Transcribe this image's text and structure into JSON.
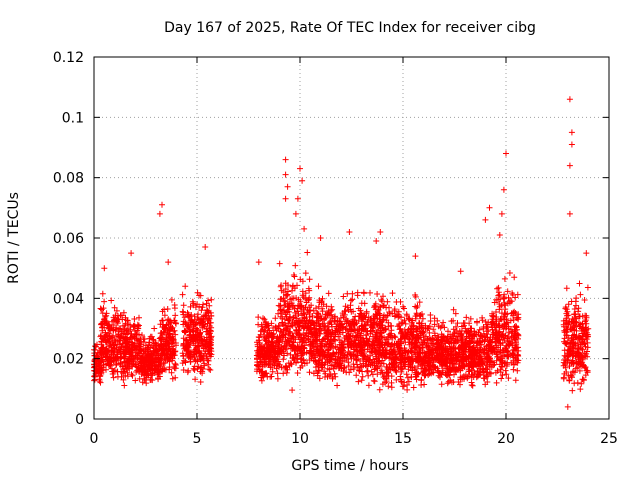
{
  "chart_data": {
    "type": "scatter",
    "title": "Day 167 of 2025, Rate Of TEC Index for receiver cibg",
    "xlabel": "GPS time / hours",
    "ylabel": "ROTI / TECUs",
    "xlim": [
      0,
      25
    ],
    "ylim": [
      0,
      0.12
    ],
    "xticks": [
      0,
      5,
      10,
      15,
      20,
      25
    ],
    "xtick_labels": [
      "0",
      "5",
      "10",
      "15",
      "20",
      "25"
    ],
    "yticks": [
      0,
      0.02,
      0.04,
      0.06,
      0.08,
      0.1,
      0.12
    ],
    "ytick_labels": [
      "0",
      "0.02",
      "0.04",
      "0.06",
      "0.08",
      "0.1",
      "0.12"
    ],
    "grid": true,
    "marker": "+",
    "series_color": "#ff0000",
    "series": [
      {
        "name": "ROTI",
        "segments": [
          {
            "x_range": [
              0.0,
              0.3
            ],
            "y_range": [
              0.01,
              0.028
            ]
          },
          {
            "x_range": [
              0.3,
              1.5
            ],
            "y_range": [
              0.008,
              0.045
            ]
          },
          {
            "x_range": [
              1.5,
              2.2
            ],
            "y_range": [
              0.01,
              0.04
            ]
          },
          {
            "x_range": [
              2.2,
              3.2
            ],
            "y_range": [
              0.01,
              0.032
            ]
          },
          {
            "x_range": [
              3.2,
              4.0
            ],
            "y_range": [
              0.01,
              0.044
            ]
          },
          {
            "x_range": [
              4.3,
              5.7
            ],
            "y_range": [
              0.01,
              0.048
            ]
          },
          {
            "x_range": [
              7.9,
              9.0
            ],
            "y_range": [
              0.01,
              0.04
            ]
          },
          {
            "x_range": [
              9.0,
              10.5
            ],
            "y_range": [
              0.008,
              0.058
            ]
          },
          {
            "x_range": [
              10.5,
              12.0
            ],
            "y_range": [
              0.008,
              0.048
            ]
          },
          {
            "x_range": [
              12.0,
              14.0
            ],
            "y_range": [
              0.008,
              0.05
            ]
          },
          {
            "x_range": [
              14.0,
              16.0
            ],
            "y_range": [
              0.006,
              0.046
            ]
          },
          {
            "x_range": [
              16.0,
              18.0
            ],
            "y_range": [
              0.008,
              0.04
            ]
          },
          {
            "x_range": [
              18.0,
              19.3
            ],
            "y_range": [
              0.008,
              0.04
            ]
          },
          {
            "x_range": [
              19.3,
              20.6
            ],
            "y_range": [
              0.008,
              0.052
            ]
          },
          {
            "x_range": [
              22.8,
              24.0
            ],
            "y_range": [
              0.006,
              0.05
            ]
          }
        ],
        "outliers": [
          [
            0.5,
            0.05
          ],
          [
            1.8,
            0.055
          ],
          [
            3.2,
            0.068
          ],
          [
            3.3,
            0.071
          ],
          [
            3.6,
            0.052
          ],
          [
            5.4,
            0.057
          ],
          [
            8.0,
            0.052
          ],
          [
            9.3,
            0.086
          ],
          [
            9.3,
            0.081
          ],
          [
            9.4,
            0.077
          ],
          [
            9.3,
            0.073
          ],
          [
            10.0,
            0.083
          ],
          [
            10.1,
            0.079
          ],
          [
            9.9,
            0.073
          ],
          [
            9.8,
            0.068
          ],
          [
            10.2,
            0.063
          ],
          [
            11.0,
            0.06
          ],
          [
            12.4,
            0.062
          ],
          [
            13.7,
            0.059
          ],
          [
            13.9,
            0.062
          ],
          [
            15.6,
            0.054
          ],
          [
            17.8,
            0.049
          ],
          [
            19.0,
            0.066
          ],
          [
            19.2,
            0.07
          ],
          [
            19.8,
            0.068
          ],
          [
            19.9,
            0.076
          ],
          [
            20.0,
            0.088
          ],
          [
            19.7,
            0.061
          ],
          [
            20.4,
            0.047
          ],
          [
            23.1,
            0.106
          ],
          [
            23.2,
            0.095
          ],
          [
            23.2,
            0.091
          ],
          [
            23.1,
            0.084
          ],
          [
            23.1,
            0.068
          ],
          [
            23.0,
            0.004
          ],
          [
            23.9,
            0.055
          ]
        ]
      }
    ]
  }
}
